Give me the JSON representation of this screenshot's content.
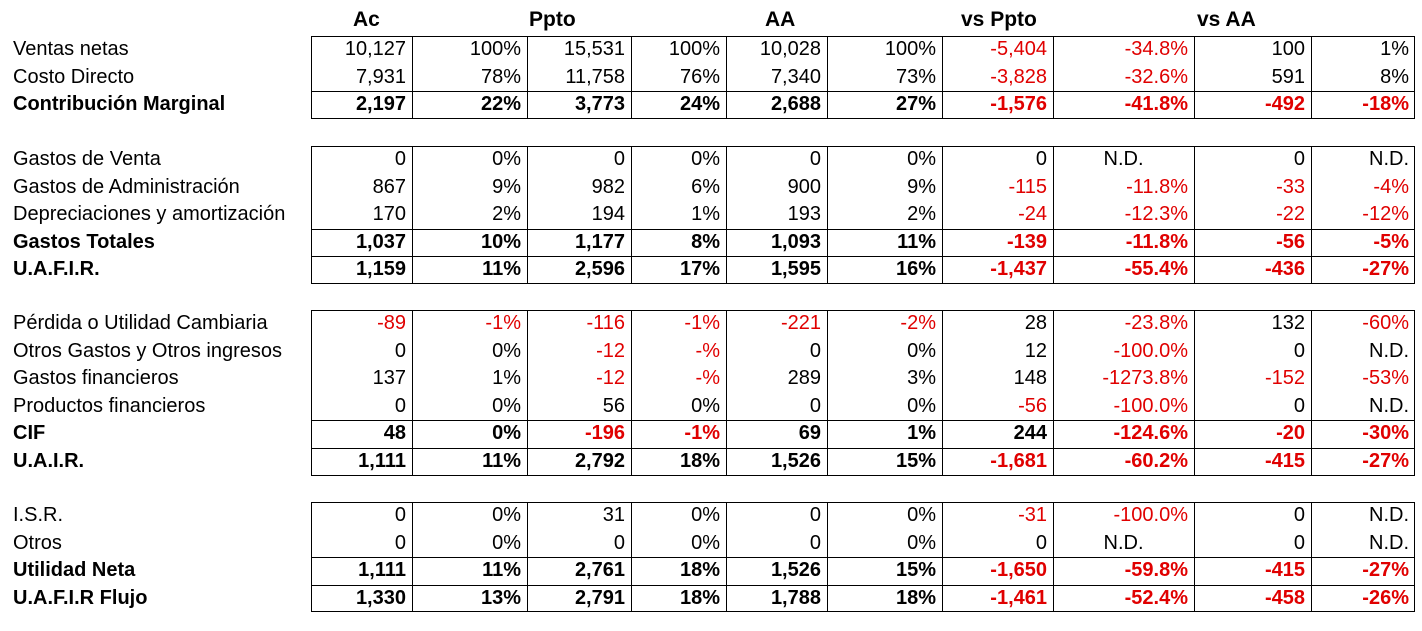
{
  "colors": {
    "negative": "#e00000",
    "text": "#000000"
  },
  "headers": [
    "Ac",
    "Ppto",
    "AA",
    "vs Ppto",
    "vs AA"
  ],
  "groups": [
    {
      "rows": [
        {
          "label": "Ventas netas",
          "bold": false,
          "cells": [
            "10,127",
            "100%",
            "15,531",
            "100%",
            "10,028",
            "100%",
            "-5,404",
            "-34.8%",
            "100",
            "1%"
          ]
        },
        {
          "label": "Costo Directo",
          "bold": false,
          "cells": [
            "7,931",
            "78%",
            "11,758",
            "76%",
            "7,340",
            "73%",
            "-3,828",
            "-32.6%",
            "591",
            "8%"
          ]
        },
        {
          "label": "Contribución Marginal",
          "bold": true,
          "cells": [
            "2,197",
            "22%",
            "3,773",
            "24%",
            "2,688",
            "27%",
            "-1,576",
            "-41.8%",
            "-492",
            "-18%"
          ]
        }
      ]
    },
    {
      "rows": [
        {
          "label": "Gastos de Venta",
          "bold": false,
          "cells": [
            "0",
            "0%",
            "0",
            "0%",
            "0",
            "0%",
            "0",
            "N.D.",
            "0",
            "N.D."
          ]
        },
        {
          "label": "Gastos de Administración",
          "bold": false,
          "cells": [
            "867",
            "9%",
            "982",
            "6%",
            "900",
            "9%",
            "-115",
            "-11.8%",
            "-33",
            "-4%"
          ]
        },
        {
          "label": "Depreciaciones y amortización",
          "bold": false,
          "cells": [
            "170",
            "2%",
            "194",
            "1%",
            "193",
            "2%",
            "-24",
            "-12.3%",
            "-22",
            "-12%"
          ]
        },
        {
          "label": "Gastos Totales",
          "bold": true,
          "cells": [
            "1,037",
            "10%",
            "1,177",
            "8%",
            "1,093",
            "11%",
            "-139",
            "-11.8%",
            "-56",
            "-5%"
          ]
        },
        {
          "label": "U.A.F.I.R.",
          "bold": true,
          "cells": [
            "1,159",
            "11%",
            "2,596",
            "17%",
            "1,595",
            "16%",
            "-1,437",
            "-55.4%",
            "-436",
            "-27%"
          ]
        }
      ]
    },
    {
      "rows": [
        {
          "label": "Pérdida o Utilidad Cambiaria",
          "bold": false,
          "cells": [
            "-89",
            "-1%",
            "-116",
            "-1%",
            "-221",
            "-2%",
            "28",
            "-23.8%",
            "132",
            "-60%"
          ]
        },
        {
          "label": "Otros Gastos y Otros ingresos",
          "bold": false,
          "cells": [
            "0",
            "0%",
            "-12",
            "-%",
            "0",
            "0%",
            "12",
            "-100.0%",
            "0",
            "N.D."
          ]
        },
        {
          "label": "Gastos financieros",
          "bold": false,
          "cells": [
            "137",
            "1%",
            "-12",
            "-%",
            "289",
            "3%",
            "148",
            "-1273.8%",
            "-152",
            "-53%"
          ]
        },
        {
          "label": "Productos financieros",
          "bold": false,
          "cells": [
            "0",
            "0%",
            "56",
            "0%",
            "0",
            "0%",
            "-56",
            "-100.0%",
            "0",
            "N.D."
          ]
        },
        {
          "label": "CIF",
          "bold": true,
          "cells": [
            "48",
            "0%",
            "-196",
            "-1%",
            "69",
            "1%",
            "244",
            "-124.6%",
            "-20",
            "-30%"
          ]
        },
        {
          "label": "U.A.I.R.",
          "bold": true,
          "cells": [
            "1,111",
            "11%",
            "2,792",
            "18%",
            "1,526",
            "15%",
            "-1,681",
            "-60.2%",
            "-415",
            "-27%"
          ]
        }
      ]
    },
    {
      "rows": [
        {
          "label": "I.S.R.",
          "bold": false,
          "cells": [
            "0",
            "0%",
            "31",
            "0%",
            "0",
            "0%",
            "-31",
            "-100.0%",
            "0",
            "N.D."
          ]
        },
        {
          "label": "Otros",
          "bold": false,
          "cells": [
            "0",
            "0%",
            "0",
            "0%",
            "0",
            "0%",
            "0",
            "N.D.",
            "0",
            "N.D."
          ]
        },
        {
          "label": "Utilidad Neta",
          "bold": true,
          "cells": [
            "1,111",
            "11%",
            "2,761",
            "18%",
            "1,526",
            "15%",
            "-1,650",
            "-59.8%",
            "-415",
            "-27%"
          ]
        },
        {
          "label": "U.A.F.I.R Flujo",
          "bold": true,
          "cells": [
            "1,330",
            "13%",
            "2,791",
            "18%",
            "1,788",
            "18%",
            "-1,461",
            "-52.4%",
            "-458",
            "-26%"
          ]
        }
      ]
    }
  ]
}
